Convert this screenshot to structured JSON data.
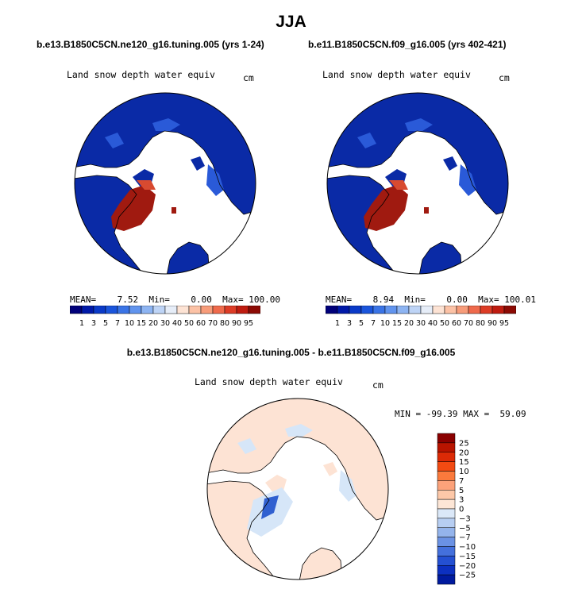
{
  "page": {
    "season": "JJA",
    "case_title_left": "b.e13.B1850C5CN.ne120_g16.tuning.005 (yrs 1-24)",
    "case_title_right": "b.e11.B1850C5CN.f09_g16.005 (yrs 402-421)",
    "diff_title": "b.e13.B1850C5CN.ne120_g16.tuning.005 - b.e11.B1850C5CN.f09_g16.005"
  },
  "colors": {
    "ocean": "#ffffff",
    "land_low": "#0a2aa6",
    "land_edge": "#2a5ad8",
    "snow": "#ffffff",
    "greenland": "#a01a10",
    "greenland_edge": "#d84a30",
    "diff_positive": "#fde3d4",
    "diff_negative": "#d6e6f8"
  },
  "chart_data": [
    {
      "type": "heatmap",
      "projection": "north-polar-stereographic",
      "title": "Land snow depth water equiv",
      "units": "cm",
      "stats": {
        "mean_label": "MEAN=",
        "mean": "7.52",
        "min_label": "Min=",
        "min": "0.00",
        "max_label": "Max=",
        "max": "100.00"
      },
      "colorbar": {
        "orientation": "horizontal",
        "tick_labels": [
          "1",
          "3",
          "5",
          "7",
          "10",
          "15",
          "20",
          "30",
          "40",
          "50",
          "60",
          "70",
          "80",
          "90",
          "95"
        ],
        "colors": [
          "#00007a",
          "#0019a8",
          "#0a3ac8",
          "#1a55dc",
          "#3a74e6",
          "#6194ee",
          "#8db4f2",
          "#bed4f6",
          "#e6edf8",
          "#fde3d4",
          "#fcc2a6",
          "#f79c7a",
          "#ef6a4c",
          "#dd3c26",
          "#bf1c10",
          "#8c0a04"
        ]
      }
    },
    {
      "type": "heatmap",
      "projection": "north-polar-stereographic",
      "title": "Land snow depth water equiv",
      "units": "cm",
      "stats": {
        "mean_label": "MEAN=",
        "mean": "8.94",
        "min_label": "Min=",
        "min": "0.00",
        "max_label": "Max=",
        "max": "100.01"
      },
      "colorbar": {
        "orientation": "horizontal",
        "tick_labels": [
          "1",
          "3",
          "5",
          "7",
          "10",
          "15",
          "20",
          "30",
          "40",
          "50",
          "60",
          "70",
          "80",
          "90",
          "95"
        ],
        "colors": [
          "#00007a",
          "#0019a8",
          "#0a3ac8",
          "#1a55dc",
          "#3a74e6",
          "#6194ee",
          "#8db4f2",
          "#bed4f6",
          "#e6edf8",
          "#fde3d4",
          "#fcc2a6",
          "#f79c7a",
          "#ef6a4c",
          "#dd3c26",
          "#bf1c10",
          "#8c0a04"
        ]
      }
    },
    {
      "type": "heatmap",
      "projection": "north-polar-stereographic",
      "title": "Land snow depth water equiv",
      "units": "cm",
      "stats": {
        "min_label": "MIN =",
        "min": "-99.39",
        "max_label": "MAX =",
        "max": "59.09"
      },
      "colorbar": {
        "orientation": "vertical",
        "tick_labels": [
          "25",
          "20",
          "15",
          "10",
          "7",
          "5",
          "3",
          "0",
          "−3",
          "−5",
          "−7",
          "−10",
          "−15",
          "−20",
          "−25"
        ],
        "colors": [
          "#8a0000",
          "#b81400",
          "#dc2a06",
          "#f24a12",
          "#fb7a3c",
          "#fca27a",
          "#fdc8a8",
          "#fde6d6",
          "#dbe8f8",
          "#b7cef2",
          "#94b4ec",
          "#6b92e4",
          "#4470dc",
          "#2450d2",
          "#0c30c0",
          "#001a9e"
        ]
      }
    }
  ]
}
